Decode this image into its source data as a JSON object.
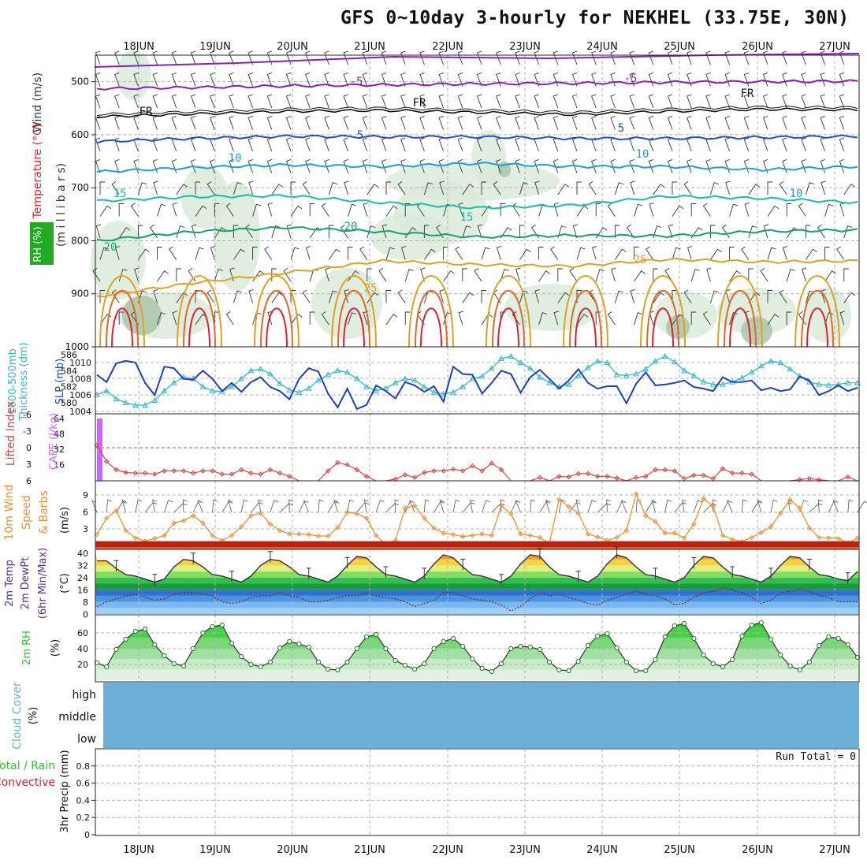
{
  "title": "GFS 0~10day 3-hourly for NEKHEL (33.75E, 30N)",
  "colors": {
    "grid": "#b0b0b0",
    "purple": "#8a1fc0",
    "black": "#111111",
    "blue": "#1f4fd8",
    "skyblue": "#1aa0e0",
    "teal": "#13c0a8",
    "green": "#14a070",
    "orange": "#e0a020",
    "darkorange": "#e06a20",
    "red": "#e02030",
    "cyan": "#30b8c8",
    "slp": "#1d3fcc",
    "cape": "#cc66ff",
    "li": "#e04040",
    "wind": "#f09030",
    "rh": "#22cc22",
    "cloud": "#6baed6"
  },
  "dates": [
    "18JUN",
    "19JUN",
    "20JUN",
    "21JUN",
    "22JUN",
    "23JUN",
    "24JUN",
    "25JUN",
    "26JUN",
    "27JUN"
  ],
  "chart_data": [
    {
      "type": "line",
      "name": "upper-air cross section",
      "ylabel_parts": [
        "Wind (m/s)",
        "Temperature (°C)",
        "(m i l l i b a r s)",
        "RH (%)"
      ],
      "yticks": [
        "500",
        "600",
        "700",
        "800",
        "900",
        "1000"
      ],
      "ylim": [
        450,
        1000
      ],
      "isotherm_labels": [
        "-5",
        "-5",
        "FR",
        "FR",
        "FR",
        "5",
        "5",
        "10",
        "10",
        "10",
        "15",
        "15",
        "20",
        "20",
        "25",
        "25"
      ],
      "series": [
        {
          "name": "-5 isotherm",
          "values": [
            513,
            511,
            508,
            506,
            504,
            503,
            501,
            500,
            499
          ]
        },
        {
          "name": "FR isotherm",
          "values": [
            566,
            561,
            556,
            554,
            558,
            562,
            556,
            552,
            553
          ]
        },
        {
          "name": "5 isotherm",
          "values": [
            613,
            607,
            603,
            604,
            604,
            607,
            607,
            605,
            603
          ]
        },
        {
          "name": "10 isotherm",
          "values": [
            670,
            662,
            657,
            660,
            654,
            660,
            660,
            666,
            660
          ]
        },
        {
          "name": "15 isotherm",
          "values": [
            725,
            717,
            715,
            728,
            738,
            733,
            716,
            720,
            728
          ]
        },
        {
          "name": "20 isotherm",
          "values": [
            800,
            783,
            775,
            783,
            793,
            790,
            791,
            782,
            780
          ]
        },
        {
          "name": "25 isotherm",
          "values": [
            905,
            880,
            860,
            838,
            845,
            848,
            835,
            840,
            838
          ]
        }
      ]
    },
    {
      "type": "line",
      "name": "thickness and SLP",
      "ylabel_left": [
        "1000-500mb",
        "Thickness (dm)"
      ],
      "ylabel_right": "SLP (mb)",
      "yticks_left": [
        "586",
        "584",
        "582",
        "580"
      ],
      "yticks_right": [
        "1010",
        "1008",
        "1006",
        "1004"
      ],
      "series": [
        {
          "name": "SLP (mb)",
          "values": [
            1008.5,
            1007.6,
            1009.9,
            1010.2,
            1010.0,
            1007.5,
            1006.0,
            1009.5,
            1009.3,
            1008.0,
            1007.9,
            1009.0,
            1008.0,
            1006.5,
            1007.5,
            1006.4,
            1007.6,
            1008.2,
            1007.0,
            1006.5,
            1005.5,
            1008.0,
            1009.3,
            1008.9,
            1006.2,
            1004.5,
            1006.8,
            1004.3,
            1004.8,
            1007.2,
            1006.5,
            1005.6,
            1007.6,
            1007.2,
            1006.4,
            1007.1,
            1005.2,
            1009.5,
            1008.6,
            1008.5,
            1006.2,
            1007.5,
            1009.0,
            1008.6,
            1006.3,
            1008.2,
            1009.1,
            1008.0,
            1006.8,
            1007.8,
            1009.2,
            1007.5,
            1006.8,
            1007.1,
            1007.1,
            1005.0,
            1007.4,
            1008.8,
            1007.2,
            1007.3,
            1007.5,
            1007.8,
            1007.0,
            1006.8,
            1006.5,
            1008.2,
            1007.6,
            1007.6,
            1007.8,
            1006.6,
            1006.9,
            1006.5,
            1006.7,
            1008.3,
            1007.8,
            1006.0,
            1006.5,
            1007.2,
            1006.5,
            1006.9
          ]
        },
        {
          "name": "1000-500mb thickness (dm)",
          "values": [
            581.0,
            581.5,
            580.5,
            580.0,
            579.7,
            579.7,
            580.3,
            581.5,
            582.5,
            583.2,
            583.0,
            582.0,
            581.5,
            581.4,
            582.0,
            583.0,
            584.0,
            584.2,
            583.6,
            582.4,
            581.6,
            581.3,
            581.8,
            582.8,
            583.5,
            584.0,
            583.8,
            583.0,
            582.0,
            581.5,
            581.8,
            582.5,
            583.0,
            582.8,
            582.0,
            581.3,
            581.1,
            581.3,
            582.0,
            583.0,
            583.3,
            584.3,
            585.5,
            585.8,
            585.0,
            584.3,
            583.2,
            582.5,
            582.0,
            582.3,
            583.4,
            584.4,
            585.2,
            585.0,
            583.5,
            583.4,
            583.6,
            584.2,
            585.2,
            585.8,
            585.1,
            584.0,
            583.4,
            582.6,
            582.3,
            582.3,
            582.6,
            583.1,
            583.8,
            584.6,
            585.2,
            585.0,
            584.2,
            583.3,
            582.6,
            582.3,
            582.2,
            582.3,
            582.5,
            582.5
          ]
        }
      ]
    },
    {
      "type": "line",
      "name": "lifted index and CAPE",
      "ylabel_left": "Lifted Index",
      "ylabel_right": "CAPE (J/kg)",
      "yticks_left": [
        "-6",
        "-3",
        "0",
        "3",
        "6"
      ],
      "yticks_right": [
        "64",
        "48",
        "32",
        "16"
      ],
      "series": [
        {
          "name": "CAPE (J/kg)",
          "values": [
            60
          ]
        },
        {
          "name": "Lifted Index",
          "values": [
            -0.5,
            2.5,
            4.0,
            4.5,
            4.6,
            4.6,
            4.8,
            4.2,
            4.2,
            4.2,
            4.6,
            4.2,
            4.2,
            4.8,
            4.8,
            4.0,
            4.6,
            4.8,
            4.0,
            4.6,
            5.2,
            6.0,
            6.0,
            6.0,
            4.2,
            2.7,
            3.1,
            4.0,
            5.2,
            6.0,
            6.0,
            5.7,
            4.9,
            5.4,
            4.5,
            4.2,
            4.2,
            3.9,
            4.2,
            3.3,
            4.2,
            2.8,
            4.0,
            6.0,
            6.0,
            6.0,
            5.4,
            6.0,
            5.2,
            5.3,
            4.7,
            4.7,
            5.2,
            5.2,
            5.5,
            6.0,
            5.4,
            5.2,
            4.0,
            4.0,
            4.2,
            5.6,
            5.0,
            5.0,
            5.6,
            3.8,
            4.6,
            4.6,
            4.8,
            6.0,
            6.0,
            6.0,
            6.0,
            5.8,
            5.6,
            5.8,
            6.0,
            6.0,
            5.3,
            6.0
          ]
        }
      ]
    },
    {
      "type": "line",
      "name": "10m wind speed and barbs",
      "ylabel_left": [
        "10m Wind",
        "Speed",
        "& Barbs"
      ],
      "ylabel_right": "(m/s)",
      "yticks": [
        "9",
        "6",
        "3"
      ],
      "series": [
        {
          "name": "10m wind speed (m/s)",
          "values": [
            2.2,
            5.5,
            7.0,
            3.0,
            1.5,
            0.9,
            1.4,
            2.0,
            4.5,
            5.0,
            6.0,
            4.5,
            2.0,
            1.0,
            2.0,
            3.8,
            6.0,
            6.5,
            4.3,
            3.0,
            2.3,
            2.3,
            2.2,
            1.9,
            1.9,
            3.6,
            6.7,
            6.4,
            5.5,
            2.0,
            0.3,
            1.0,
            7.5,
            8.0,
            5.5,
            3.5,
            2.5,
            2.2,
            1.8,
            2.0,
            2.3,
            2.0,
            8.0,
            6.4,
            2.3,
            2.0,
            1.6,
            0.4,
            9.3,
            7.8,
            6.5,
            2.3,
            1.7,
            1.0,
            1.6,
            3.0,
            10.4,
            6.0,
            4.8,
            2.5,
            2.5,
            1.5,
            4.3,
            9.4,
            7.9,
            2.0,
            1.2,
            0.8,
            1.6,
            2.6,
            3.8,
            6.5,
            9.2,
            7.5,
            3.5,
            1.6,
            1.5,
            1.4,
            0.5,
            1.5
          ]
        }
      ]
    },
    {
      "type": "area",
      "name": "2m temperature and dew point",
      "ylabel_left": [
        "2m Temp",
        "2m DewPt",
        "(6hr Min/Max)"
      ],
      "ylabel_right": "(°C)",
      "yticks": [
        "40",
        "32",
        "24",
        "16",
        "8",
        "0"
      ],
      "series": [
        {
          "name": "2m Temp (°C)",
          "values": [
            35,
            35,
            30,
            26,
            25,
            23,
            21,
            23,
            31,
            36,
            35,
            31,
            26,
            25,
            23,
            21,
            25,
            32,
            36,
            35,
            31,
            26,
            25,
            23,
            21,
            25,
            32,
            38,
            37,
            31,
            26,
            25,
            23,
            21,
            25,
            33,
            39,
            37,
            31,
            26,
            25,
            23,
            21,
            25,
            33,
            39,
            38,
            31,
            26,
            25,
            23,
            21,
            25,
            33,
            39,
            37,
            31,
            26,
            25,
            23,
            21,
            24,
            32,
            38,
            37,
            31,
            26,
            25,
            23,
            21,
            25,
            32,
            38,
            37,
            31,
            26,
            25,
            23,
            22,
            28
          ]
        },
        {
          "name": "2m DewPt (°C)",
          "values": [
            5,
            8,
            10,
            12,
            13,
            11,
            9,
            10,
            13,
            14,
            14,
            13,
            12,
            8,
            7,
            8,
            11,
            12,
            12,
            14,
            12,
            11,
            8,
            8,
            9,
            11,
            12,
            12,
            14,
            12,
            11,
            10,
            8,
            5,
            7,
            9,
            14,
            14,
            12,
            10,
            9,
            8,
            6,
            2,
            5,
            10,
            14,
            12,
            13,
            11,
            9,
            7,
            6,
            9,
            11,
            13,
            15,
            13,
            12,
            10,
            6,
            7,
            11,
            14,
            15,
            17,
            16,
            14,
            11,
            7,
            9,
            14,
            15,
            16,
            15,
            12,
            11,
            8,
            8,
            8
          ]
        }
      ]
    },
    {
      "type": "area",
      "name": "2m relative humidity",
      "ylabel_left": "2m RH",
      "ylabel_right": "(%)",
      "yticks": [
        "60",
        "40",
        "20"
      ],
      "series": [
        {
          "name": "2m RH (%)",
          "values": [
            22,
            17,
            39,
            52,
            62,
            65,
            45,
            31,
            21,
            18,
            40,
            60,
            68,
            70,
            47,
            30,
            20,
            17,
            23,
            41,
            49,
            46,
            42,
            23,
            14,
            13,
            23,
            40,
            55,
            58,
            40,
            25,
            19,
            14,
            21,
            40,
            49,
            53,
            43,
            27,
            15,
            11,
            21,
            40,
            43,
            42,
            39,
            23,
            13,
            12,
            24,
            44,
            56,
            59,
            41,
            23,
            12,
            12,
            26,
            55,
            69,
            72,
            53,
            32,
            21,
            17,
            26,
            56,
            70,
            73,
            52,
            32,
            18,
            13,
            23,
            44,
            55,
            53,
            45,
            29
          ]
        }
      ]
    },
    {
      "type": "area",
      "name": "cloud cover",
      "ylabel": [
        "Cloud Cover",
        "(%)"
      ],
      "levels": [
        "high",
        "middle",
        "low"
      ]
    },
    {
      "type": "bar",
      "name": "3hr precipitation",
      "ylabel": "3hr Precip (mm)",
      "legend_parts": [
        "Total / Rain",
        "Convective"
      ],
      "yticks": [
        "0.8",
        "0.6",
        "0.4",
        "0.2",
        "0"
      ],
      "ylim": [
        0,
        1
      ],
      "run_total": "Run Total = 0",
      "values": []
    }
  ]
}
